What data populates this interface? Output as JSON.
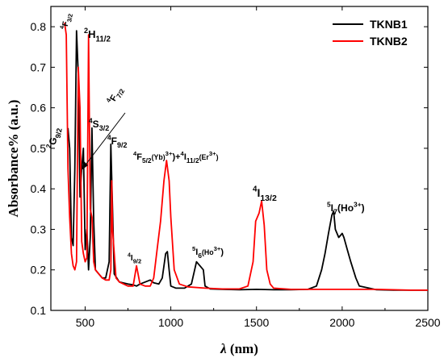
{
  "chart_data": {
    "type": "line",
    "xlabel_main": "λ",
    "xlabel_unit": " (nm)",
    "ylabel": "Absorbance% (a.u.)",
    "xlim": [
      300,
      2500
    ],
    "ylim": [
      0.1,
      0.85
    ],
    "x_ticks": [
      500,
      1000,
      1500,
      2000,
      2500
    ],
    "y_ticks": [
      0.1,
      0.2,
      0.3,
      0.4,
      0.5,
      0.6,
      0.7,
      0.8
    ],
    "x_tick_labels": [
      "500",
      "1000",
      "1500",
      "2000",
      "2500"
    ],
    "y_tick_labels": [
      "0.1",
      "0.2",
      "0.3",
      "0.4",
      "0.5",
      "0.6",
      "0.7",
      "0.8"
    ],
    "legend_position": "top-right",
    "series": [
      {
        "name": "TKNB1",
        "color": "#000000",
        "x": [
          400,
          410,
          420,
          430,
          440,
          450,
          460,
          470,
          480,
          490,
          500,
          510,
          520,
          530,
          540,
          550,
          560,
          580,
          600,
          620,
          640,
          650,
          660,
          670,
          700,
          750,
          780,
          800,
          820,
          850,
          880,
          900,
          930,
          950,
          970,
          980,
          990,
          1000,
          1030,
          1080,
          1120,
          1150,
          1170,
          1190,
          1200,
          1230,
          1300,
          1400,
          1500,
          1600,
          1700,
          1800,
          1850,
          1880,
          1900,
          1920,
          1940,
          1950,
          1960,
          1980,
          2000,
          2010,
          2030,
          2050,
          2080,
          2100,
          2200,
          2300,
          2400,
          2500
        ],
        "y": [
          0.55,
          0.5,
          0.28,
          0.26,
          0.45,
          0.79,
          0.68,
          0.38,
          0.45,
          0.5,
          0.25,
          0.3,
          0.2,
          0.28,
          0.55,
          0.32,
          0.2,
          0.19,
          0.18,
          0.18,
          0.22,
          0.51,
          0.35,
          0.19,
          0.17,
          0.165,
          0.163,
          0.16,
          0.165,
          0.17,
          0.175,
          0.168,
          0.165,
          0.18,
          0.24,
          0.245,
          0.2,
          0.16,
          0.155,
          0.155,
          0.165,
          0.22,
          0.21,
          0.2,
          0.16,
          0.153,
          0.152,
          0.151,
          0.152,
          0.151,
          0.151,
          0.152,
          0.16,
          0.2,
          0.24,
          0.29,
          0.335,
          0.345,
          0.3,
          0.28,
          0.29,
          0.28,
          0.25,
          0.22,
          0.18,
          0.16,
          0.151,
          0.15,
          0.15,
          0.15
        ]
      },
      {
        "name": "TKNB2",
        "color": "#ff0000",
        "x": [
          380,
          390,
          400,
          410,
          420,
          430,
          440,
          450,
          460,
          470,
          480,
          490,
          500,
          510,
          520,
          530,
          540,
          550,
          560,
          580,
          600,
          620,
          640,
          650,
          655,
          660,
          680,
          700,
          750,
          780,
          800,
          820,
          850,
          880,
          900,
          920,
          940,
          960,
          975,
          990,
          1000,
          1020,
          1050,
          1100,
          1200,
          1300,
          1400,
          1450,
          1480,
          1495,
          1505,
          1515,
          1530,
          1545,
          1560,
          1580,
          1600,
          1700,
          1800,
          1900,
          2000,
          2100,
          2200,
          2300,
          2400,
          2500
        ],
        "y": [
          0.81,
          0.78,
          0.45,
          0.33,
          0.24,
          0.21,
          0.2,
          0.22,
          0.7,
          0.6,
          0.27,
          0.24,
          0.22,
          0.23,
          0.78,
          0.35,
          0.33,
          0.22,
          0.2,
          0.19,
          0.18,
          0.175,
          0.175,
          0.2,
          0.42,
          0.3,
          0.18,
          0.17,
          0.16,
          0.16,
          0.21,
          0.165,
          0.16,
          0.16,
          0.18,
          0.25,
          0.32,
          0.42,
          0.47,
          0.42,
          0.33,
          0.2,
          0.165,
          0.158,
          0.155,
          0.153,
          0.153,
          0.16,
          0.22,
          0.32,
          0.33,
          0.34,
          0.37,
          0.31,
          0.2,
          0.165,
          0.155,
          0.152,
          0.152,
          0.152,
          0.152,
          0.152,
          0.152,
          0.151,
          0.15,
          0.15
        ]
      }
    ],
    "annotations": [
      {
        "id": "g92",
        "parts": [
          [
            "2",
            "sup"
          ],
          [
            "G",
            "n"
          ],
          [
            "9/2",
            "sub"
          ]
        ]
      },
      {
        "id": "f32",
        "parts": [
          [
            "4",
            "sup"
          ],
          [
            "F",
            "n"
          ],
          [
            "3/2",
            "sub"
          ]
        ]
      },
      {
        "id": "h112",
        "parts": [
          [
            "2",
            "sup"
          ],
          [
            "H",
            "n"
          ],
          [
            "11/2",
            "sub"
          ]
        ]
      },
      {
        "id": "s32",
        "parts": [
          [
            "4",
            "sup"
          ],
          [
            "S",
            "n"
          ],
          [
            "3/2",
            "sub"
          ]
        ]
      },
      {
        "id": "f72",
        "parts": [
          [
            "4",
            "sup"
          ],
          [
            "F",
            "n"
          ],
          [
            "7/2",
            "sub"
          ]
        ]
      },
      {
        "id": "f92",
        "parts": [
          [
            "4",
            "sup"
          ],
          [
            "F",
            "n"
          ],
          [
            "9/2",
            "sub"
          ]
        ]
      },
      {
        "id": "i92",
        "parts": [
          [
            "4",
            "sup"
          ],
          [
            "I",
            "n"
          ],
          [
            "9/2",
            "sub"
          ]
        ]
      },
      {
        "id": "f52",
        "parts": [
          [
            "4",
            "sup"
          ],
          [
            "F",
            "n"
          ],
          [
            "5/2",
            "sub"
          ],
          [
            "(Yb)",
            "sm"
          ],
          [
            "3+",
            "sup"
          ],
          [
            ")+",
            "n"
          ],
          [
            "4",
            "sup"
          ],
          [
            "I",
            "n"
          ],
          [
            "11/2",
            "sub"
          ],
          [
            "(Er",
            "sm"
          ],
          [
            "3+",
            "sup"
          ],
          [
            ")",
            "sm"
          ]
        ]
      },
      {
        "id": "i6",
        "parts": [
          [
            "5",
            "sup"
          ],
          [
            "I",
            "n"
          ],
          [
            "6",
            "sub"
          ],
          [
            "(Ho",
            "sm"
          ],
          [
            "3+",
            "sup"
          ],
          [
            ")",
            "n"
          ]
        ]
      },
      {
        "id": "i132",
        "parts": [
          [
            "4",
            "sup"
          ],
          [
            "I",
            "n"
          ],
          [
            "13/2",
            "sub"
          ]
        ]
      },
      {
        "id": "i7",
        "parts": [
          [
            "5",
            "sup"
          ],
          [
            "I",
            "n"
          ],
          [
            "7",
            "sub"
          ],
          [
            "(Ho",
            "n"
          ],
          [
            "3+",
            "sup"
          ],
          [
            ")",
            "n"
          ]
        ]
      }
    ]
  }
}
